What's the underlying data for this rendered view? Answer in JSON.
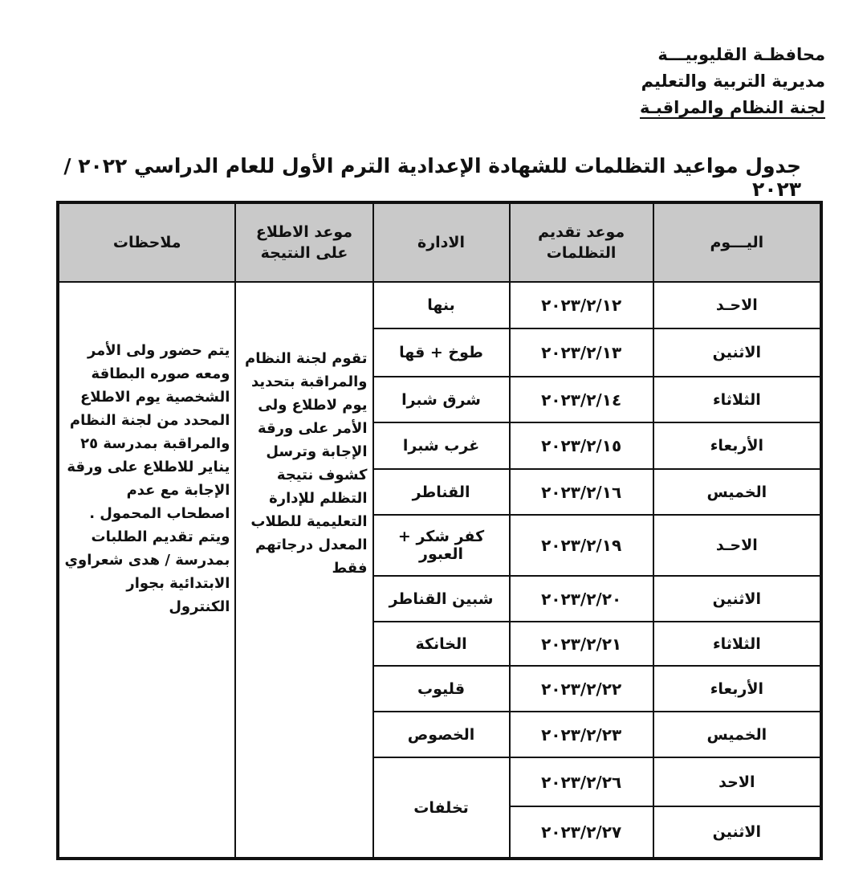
{
  "header": {
    "line1": "محافظـة القليوبيـــة",
    "line2": "مديرية التربية والتعليم",
    "line3": "لجنة النظام والمراقبـة"
  },
  "title": "جدول مواعيد التظلمات للشهادة الإعدادية الترم الأول للعام الدراسي ٢٠٢٢ /٢٠٢٣",
  "columns": [
    "اليـــوم",
    "موعد تقديم التظلمات",
    "الادارة",
    "موعد الاطلاع على النتيجة",
    "ملاحظات"
  ],
  "rows": [
    {
      "day": "الاحـد",
      "date": "٢٠٢٣/٢/١٢",
      "admin": "بنها"
    },
    {
      "day": "الاثنين",
      "date": "٢٠٢٣/٢/١٣",
      "admin": "طوخ + قها"
    },
    {
      "day": "الثلاثاء",
      "date": "٢٠٢٣/٢/١٤",
      "admin": "شرق شبرا"
    },
    {
      "day": "الأربعاء",
      "date": "٢٠٢٣/٢/١٥",
      "admin": "غرب شبرا"
    },
    {
      "day": "الخميس",
      "date": "٢٠٢٣/٢/١٦",
      "admin": "القناطر"
    },
    {
      "day": "الاحـد",
      "date": "٢٠٢٣/٢/١٩",
      "admin": "كفر شكر + العبور"
    },
    {
      "day": "الاثنين",
      "date": "٢٠٢٣/٢/٢٠",
      "admin": "شبين القناطر"
    },
    {
      "day": "الثلاثاء",
      "date": "٢٠٢٣/٢/٢١",
      "admin": "الخانكة"
    },
    {
      "day": "الأربعاء",
      "date": "٢٠٢٣/٢/٢٢",
      "admin": "قليوب"
    },
    {
      "day": "الخميس",
      "date": "٢٠٢٣/٢/٢٣",
      "admin": "الخصوص"
    },
    {
      "day": "الاحد",
      "date": "٢٠٢٣/٢/٢٦",
      "admin": "تخلفات"
    },
    {
      "day": "الاثنين",
      "date": "٢٠٢٣/٢/٢٧"
    }
  ],
  "result_viewing": "تقوم لجنة النظام والمراقبة بتحديد يوم لاطلاع ولى الأمر على ورقة الإجابة وترسل كشوف نتيجة التظلم للإدارة التعليمية للطلاب المعدل درجاتهم فقط",
  "notes": "يتم حضور ولى الأمر ومعه صوره البطاقة الشخصية يوم الاطلاع المحدد من لجنة النظام والمراقبة بمدرسة ٢٥ يناير للاطلاع على ورقة الإجابة مع عدم اصطحاب المحمول . ويتم تقديم الطلبات بمدرسة / هدى شعراوي الابتدائية بجوار الكنترول"
}
